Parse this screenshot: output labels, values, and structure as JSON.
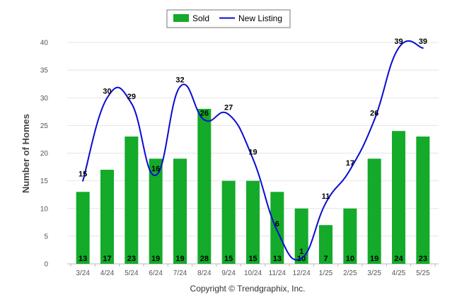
{
  "chart_data": {
    "type": "bar",
    "categories": [
      "3/24",
      "4/24",
      "5/24",
      "6/24",
      "7/24",
      "8/24",
      "9/24",
      "10/24",
      "11/24",
      "12/24",
      "1/25",
      "2/25",
      "3/25",
      "4/25",
      "5/25"
    ],
    "series": [
      {
        "name": "Sold",
        "type": "bar",
        "color": "#14aa2a",
        "values": [
          13,
          17,
          23,
          19,
          19,
          28,
          15,
          15,
          13,
          10,
          7,
          10,
          19,
          24,
          23
        ]
      },
      {
        "name": "New Listing",
        "type": "line",
        "color": "#0a0ad4",
        "values": [
          15,
          30,
          29,
          16,
          32,
          26,
          27,
          19,
          6,
          1,
          11,
          17,
          26,
          39,
          39
        ]
      }
    ],
    "ylabel": "Number of Homes",
    "xlabel": "",
    "ylim": [
      0,
      40
    ],
    "yticks": [
      0,
      5,
      10,
      15,
      20,
      25,
      30,
      35,
      40
    ],
    "grid": true,
    "legend_position": "top-center"
  },
  "footer": "Copyright © Trendgraphix, Inc."
}
